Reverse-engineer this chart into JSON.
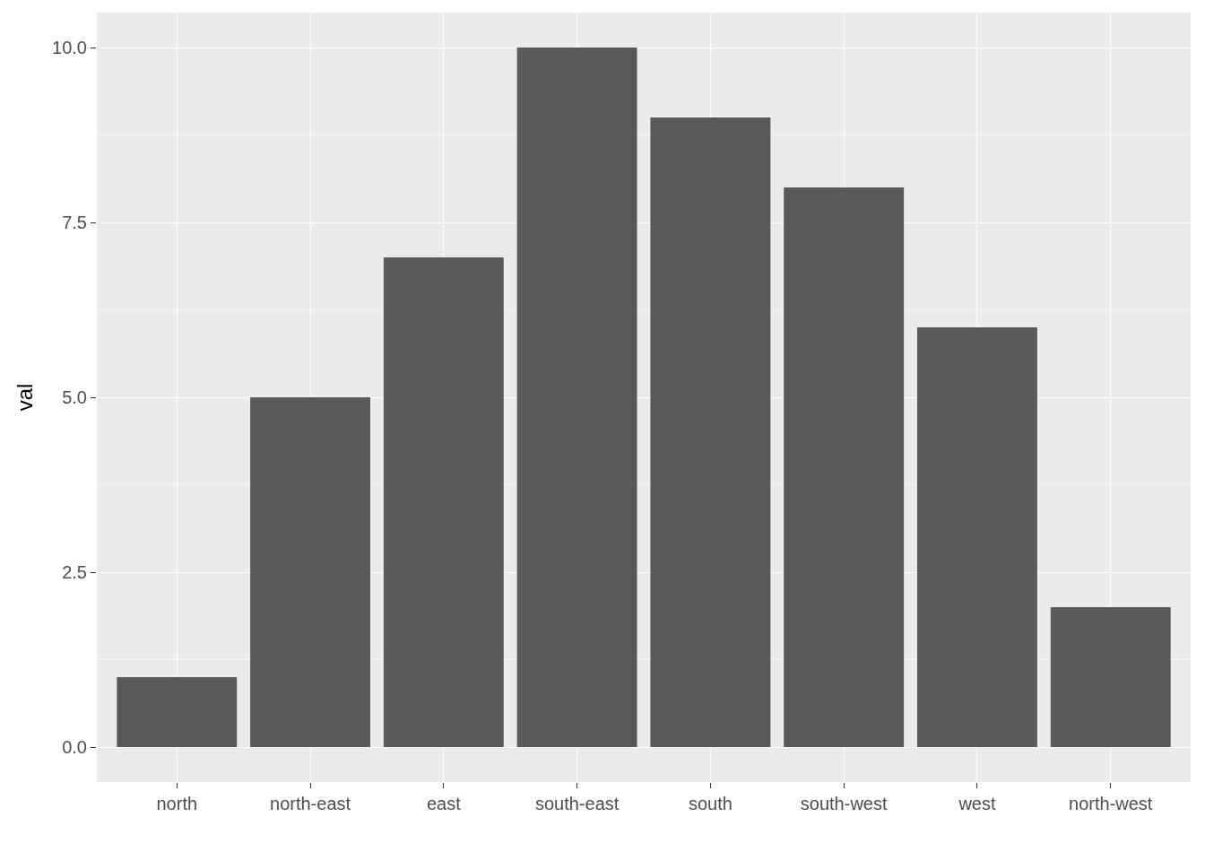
{
  "chart_data": {
    "type": "bar",
    "ylabel": "val",
    "categories": [
      "north",
      "north-east",
      "east",
      "south-east",
      "south",
      "south-west",
      "west",
      "north-west"
    ],
    "values": [
      1,
      5,
      7,
      10,
      9,
      8,
      6,
      2
    ],
    "color": "#595959",
    "ylim": [
      -0.5,
      10.5
    ],
    "yticks": [
      {
        "value": 0,
        "label": "0.0"
      },
      {
        "value": 2.5,
        "label": "2.5"
      },
      {
        "value": 5,
        "label": "5.0"
      },
      {
        "value": 7.5,
        "label": "7.5"
      },
      {
        "value": 10,
        "label": "10.0"
      }
    ],
    "grid": true
  }
}
